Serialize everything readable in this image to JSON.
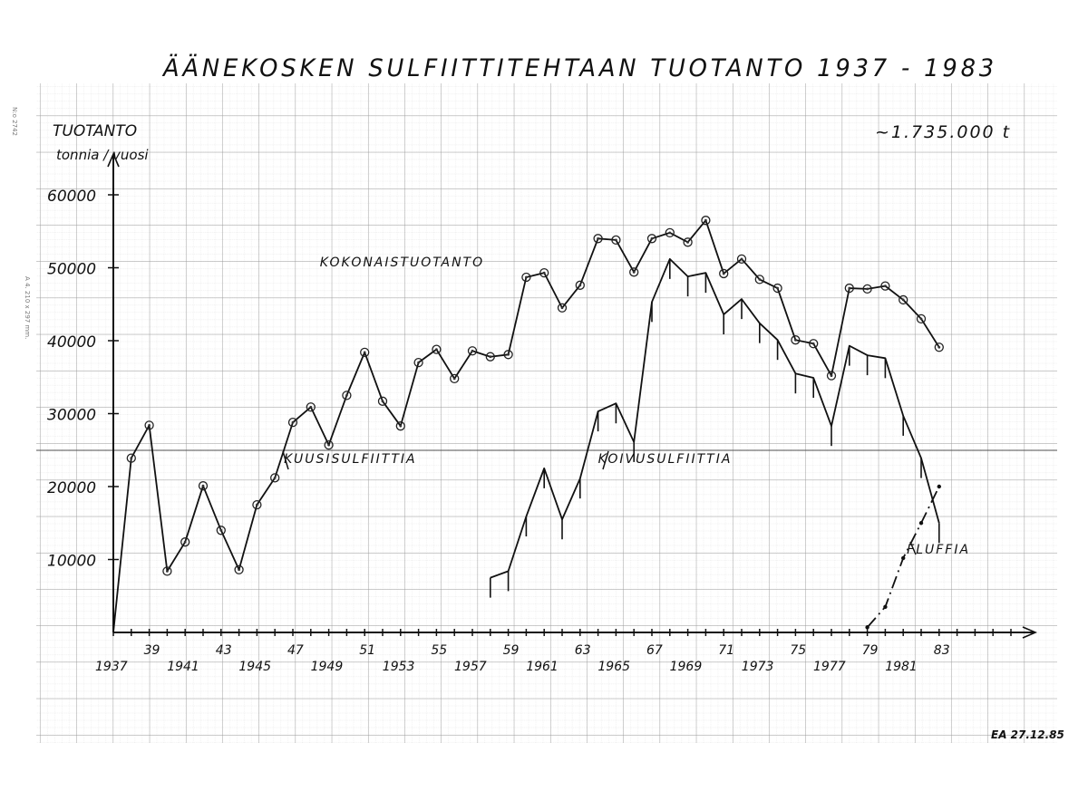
{
  "page": {
    "title": "ÄÄNEKOSKEN SULFIITTITEHTAAN TUOTANTO 1937 - 1983",
    "y_axis_title_line1": "TUOTANTO",
    "y_axis_title_line2": "tonnia / vuosi",
    "total_note": "~1.735.000 t",
    "signature": "EA 27.12.85",
    "margin_note_top": "N:o 2742",
    "margin_note_side": "A 4. 210 x 297 mm."
  },
  "chart_data": {
    "type": "line",
    "title": "ÄÄNEKOSKEN SULFIITTITEHTAAN TUOTANTO 1937 - 1983",
    "xlabel": "",
    "ylabel": "TUOTANTO tonnia / vuosi",
    "xlim": [
      1937,
      1987
    ],
    "ylim": [
      0,
      60000
    ],
    "grid": true,
    "y_ticks": [
      10000,
      20000,
      30000,
      40000,
      50000,
      60000
    ],
    "y_tick_labels": [
      "10000",
      "20000",
      "30000",
      "40000",
      "50000",
      "60000"
    ],
    "x_tick_labels_upper": [
      {
        "x": 1939,
        "label": "39"
      },
      {
        "x": 1943,
        "label": "43"
      },
      {
        "x": 1947,
        "label": "47"
      },
      {
        "x": 1951,
        "label": "51"
      },
      {
        "x": 1955,
        "label": "55"
      },
      {
        "x": 1959,
        "label": "59"
      },
      {
        "x": 1963,
        "label": "63"
      },
      {
        "x": 1967,
        "label": "67"
      },
      {
        "x": 1971,
        "label": "71"
      },
      {
        "x": 1975,
        "label": "75"
      },
      {
        "x": 1979,
        "label": "79"
      },
      {
        "x": 1983,
        "label": "83"
      }
    ],
    "x_tick_labels_lower": [
      {
        "x": 1937,
        "label": "1937"
      },
      {
        "x": 1941,
        "label": "1941"
      },
      {
        "x": 1945,
        "label": "1945"
      },
      {
        "x": 1949,
        "label": "1949"
      },
      {
        "x": 1953,
        "label": "1953"
      },
      {
        "x": 1957,
        "label": "1957"
      },
      {
        "x": 1961,
        "label": "1961"
      },
      {
        "x": 1965,
        "label": "1965"
      },
      {
        "x": 1969,
        "label": "1969"
      },
      {
        "x": 1973,
        "label": "1973"
      },
      {
        "x": 1977,
        "label": "1977"
      },
      {
        "x": 1981,
        "label": "1981"
      }
    ],
    "annotations": [
      {
        "text": "KOKONAISTUOTANTO",
        "x": 1948.5,
        "y": 50200
      },
      {
        "text": "KUUSISULFIITTIA",
        "x": 1946.5,
        "y": 23200
      },
      {
        "text": "KOIVUSULFIITTIA",
        "x": 1964,
        "y": 23200
      },
      {
        "text": "FLUFFIA",
        "x": 1981.2,
        "y": 10800
      },
      {
        "text": "~1.735.000 t",
        "x": 1979,
        "y": 68500
      }
    ],
    "series": [
      {
        "name": "KOKONAISTUOTANTO (total, incl. KUUSISULFIITTIA before 1958)",
        "style": "solid-circles",
        "x": [
          1937,
          1938,
          1939,
          1940,
          1941,
          1942,
          1943,
          1944,
          1945,
          1946,
          1947,
          1948,
          1949,
          1950,
          1951,
          1952,
          1953,
          1954,
          1955,
          1956,
          1957,
          1958,
          1959,
          1960,
          1961,
          1962,
          1963,
          1964,
          1965,
          1966,
          1967,
          1968,
          1969,
          1970,
          1971,
          1972,
          1973,
          1974,
          1975,
          1976,
          1977,
          1978,
          1979,
          1980,
          1981,
          1982,
          1983
        ],
        "values": [
          0,
          23900,
          28400,
          8400,
          12400,
          20100,
          14000,
          8600,
          17500,
          21200,
          28800,
          30900,
          25700,
          32500,
          38400,
          31700,
          28300,
          37000,
          38800,
          34800,
          38600,
          37800,
          38100,
          48700,
          49300,
          44500,
          47600,
          54000,
          53800,
          49400,
          54000,
          54800,
          53500,
          56500,
          49200,
          51200,
          48400,
          47200,
          40100,
          39600,
          35200,
          47200,
          47100,
          47500,
          45600,
          43000,
          39100
        ]
      },
      {
        "name": "KOIVUSULFIITTIA (birch sulphite)",
        "style": "solid-drops",
        "x": [
          1958,
          1959,
          1960,
          1961,
          1962,
          1963,
          1964,
          1965,
          1966,
          1967,
          1968,
          1969,
          1970,
          1971,
          1972,
          1973,
          1974,
          1975,
          1976,
          1977,
          1978,
          1979,
          1980,
          1981,
          1982,
          1983
        ],
        "values": [
          7500,
          8400,
          15900,
          22500,
          15500,
          21100,
          30300,
          31400,
          26100,
          45300,
          51200,
          48800,
          49300,
          43600,
          45700,
          42400,
          40100,
          35500,
          34900,
          28300,
          39300,
          38000,
          37600,
          29700,
          23900,
          15000
        ]
      },
      {
        "name": "FLUFFIA (fluff pulp)",
        "style": "dash-dot",
        "x": [
          1979,
          1980,
          1981,
          1982,
          1983
        ],
        "values": [
          700,
          3500,
          10200,
          15000,
          20000
        ]
      }
    ]
  }
}
